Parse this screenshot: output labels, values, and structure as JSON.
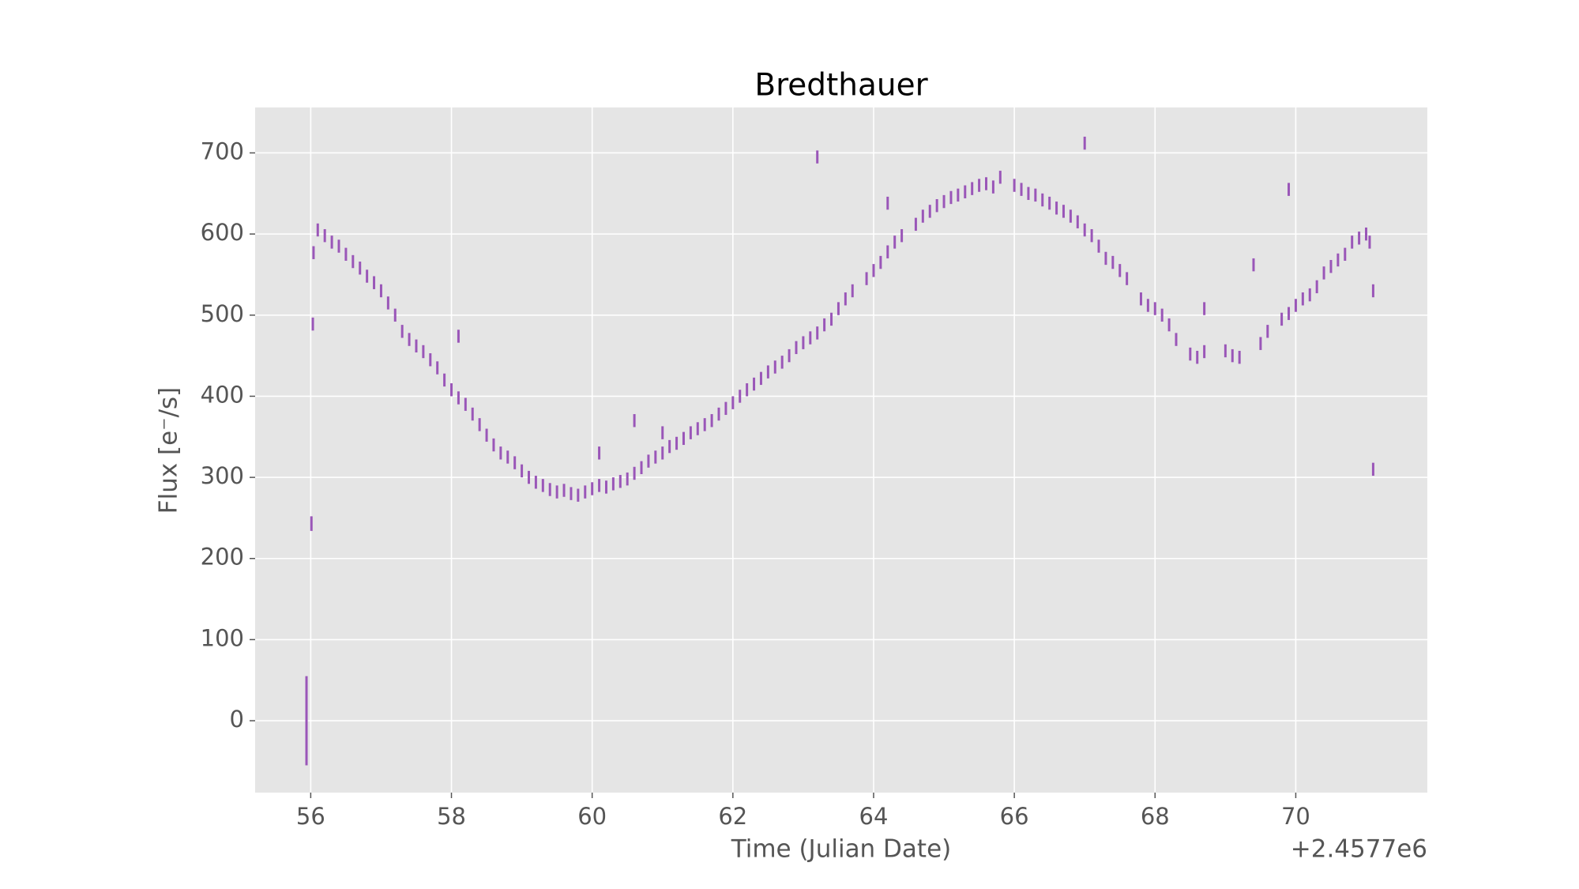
{
  "chart_data": {
    "type": "errorbar",
    "title": "Bredthauer",
    "x_label": "Time (Julian Date)",
    "y_label": "Flux [e⁻/s]",
    "x_offset_label": "+2.4577e6",
    "color": "#9a56b8",
    "grid": true,
    "xlim": [
      55.21,
      71.87
    ],
    "ylim": [
      -88.6,
      756
    ],
    "xticks": [
      56,
      58,
      60,
      62,
      64,
      66,
      68,
      70
    ],
    "yticks": [
      0,
      100,
      200,
      300,
      400,
      500,
      600,
      700
    ],
    "x": [
      55.94,
      56.01,
      56.03,
      56.04,
      56.1,
      56.2,
      56.3,
      56.4,
      56.5,
      56.6,
      56.7,
      56.8,
      56.9,
      57.0,
      57.1,
      57.2,
      57.3,
      57.4,
      57.5,
      57.6,
      57.7,
      57.8,
      57.9,
      58.0,
      58.1,
      58.2,
      58.3,
      58.4,
      58.5,
      58.6,
      58.7,
      58.8,
      58.9,
      59.0,
      59.1,
      59.2,
      59.3,
      59.4,
      59.5,
      59.6,
      59.7,
      59.8,
      59.9,
      60.0,
      60.1,
      60.2,
      60.3,
      60.4,
      60.5,
      60.6,
      60.7,
      60.8,
      60.9,
      61.0,
      61.1,
      61.2,
      61.3,
      61.4,
      61.5,
      61.6,
      61.7,
      61.8,
      61.9,
      62.0,
      62.1,
      62.2,
      62.3,
      62.4,
      62.5,
      62.6,
      62.7,
      62.8,
      62.9,
      63.0,
      63.1,
      63.2,
      63.3,
      63.4,
      63.5,
      63.6,
      63.7,
      63.9,
      64.0,
      64.1,
      64.2,
      64.3,
      64.4,
      64.6,
      64.7,
      64.8,
      64.9,
      65.0,
      65.1,
      65.2,
      65.3,
      65.4,
      65.5,
      65.6,
      65.7,
      65.8,
      66.0,
      66.1,
      66.2,
      66.3,
      66.4,
      66.5,
      66.6,
      66.7,
      66.8,
      66.9,
      67.0,
      67.1,
      67.2,
      67.3,
      67.4,
      67.5,
      67.6,
      67.8,
      67.9,
      68.0,
      68.1,
      68.2,
      68.3,
      68.5,
      68.6,
      68.7,
      69.0,
      69.1,
      69.2,
      69.5,
      69.6,
      69.8,
      69.9,
      70.0,
      70.1,
      70.2,
      70.3,
      70.4,
      70.5,
      70.6,
      70.7,
      70.8,
      70.9,
      71.0,
      71.05,
      71.1,
      71.1,
      63.2,
      67.0,
      69.9,
      69.4,
      68.7,
      58.1,
      60.6,
      61.0,
      60.1,
      64.2
    ],
    "values": [
      0,
      243,
      489,
      577,
      605,
      598,
      590,
      585,
      575,
      566,
      558,
      548,
      540,
      530,
      515,
      500,
      480,
      470,
      462,
      455,
      445,
      435,
      420,
      408,
      398,
      390,
      378,
      365,
      352,
      340,
      330,
      325,
      318,
      308,
      300,
      294,
      290,
      285,
      282,
      284,
      280,
      278,
      282,
      286,
      290,
      288,
      292,
      295,
      298,
      305,
      312,
      320,
      325,
      330,
      338,
      342,
      348,
      355,
      360,
      365,
      370,
      378,
      385,
      392,
      400,
      408,
      415,
      422,
      430,
      436,
      442,
      450,
      460,
      466,
      472,
      478,
      488,
      495,
      508,
      520,
      530,
      545,
      555,
      565,
      578,
      590,
      598,
      612,
      622,
      628,
      635,
      640,
      645,
      648,
      652,
      656,
      660,
      662,
      658,
      670,
      660,
      655,
      650,
      648,
      642,
      638,
      632,
      628,
      622,
      615,
      605,
      598,
      585,
      570,
      565,
      555,
      545,
      520,
      512,
      508,
      500,
      488,
      470,
      452,
      448,
      455,
      456,
      450,
      448,
      465,
      480,
      495,
      502,
      512,
      520,
      525,
      535,
      552,
      560,
      568,
      575,
      590,
      595,
      600,
      590,
      530,
      310,
      695,
      712,
      655,
      562,
      508,
      474,
      370,
      355,
      330,
      638
    ],
    "errors": [
      55,
      9,
      8,
      8,
      8,
      8,
      8,
      8,
      8,
      8,
      8,
      8,
      8,
      8,
      8,
      8,
      8,
      8,
      8,
      8,
      8,
      8,
      8,
      8,
      8,
      8,
      8,
      8,
      8,
      8,
      8,
      8,
      8,
      8,
      8,
      8,
      8,
      8,
      8,
      8,
      8,
      8,
      8,
      8,
      8,
      8,
      8,
      8,
      8,
      8,
      8,
      8,
      8,
      8,
      8,
      8,
      8,
      8,
      8,
      8,
      8,
      8,
      8,
      8,
      8,
      8,
      8,
      8,
      8,
      8,
      8,
      8,
      8,
      8,
      8,
      8,
      8,
      8,
      8,
      8,
      8,
      8,
      8,
      8,
      8,
      8,
      8,
      8,
      8,
      8,
      8,
      8,
      8,
      8,
      8,
      8,
      8,
      8,
      8,
      8,
      8,
      8,
      8,
      8,
      8,
      8,
      8,
      8,
      8,
      8,
      8,
      8,
      8,
      8,
      8,
      8,
      8,
      8,
      8,
      8,
      8,
      8,
      8,
      8,
      8,
      8,
      8,
      8,
      8,
      8,
      8,
      8,
      8,
      8,
      8,
      8,
      8,
      8,
      8,
      8,
      8,
      8,
      8,
      8,
      8,
      8,
      8,
      8,
      8,
      8,
      8,
      8,
      8,
      8,
      8,
      8,
      8
    ]
  }
}
